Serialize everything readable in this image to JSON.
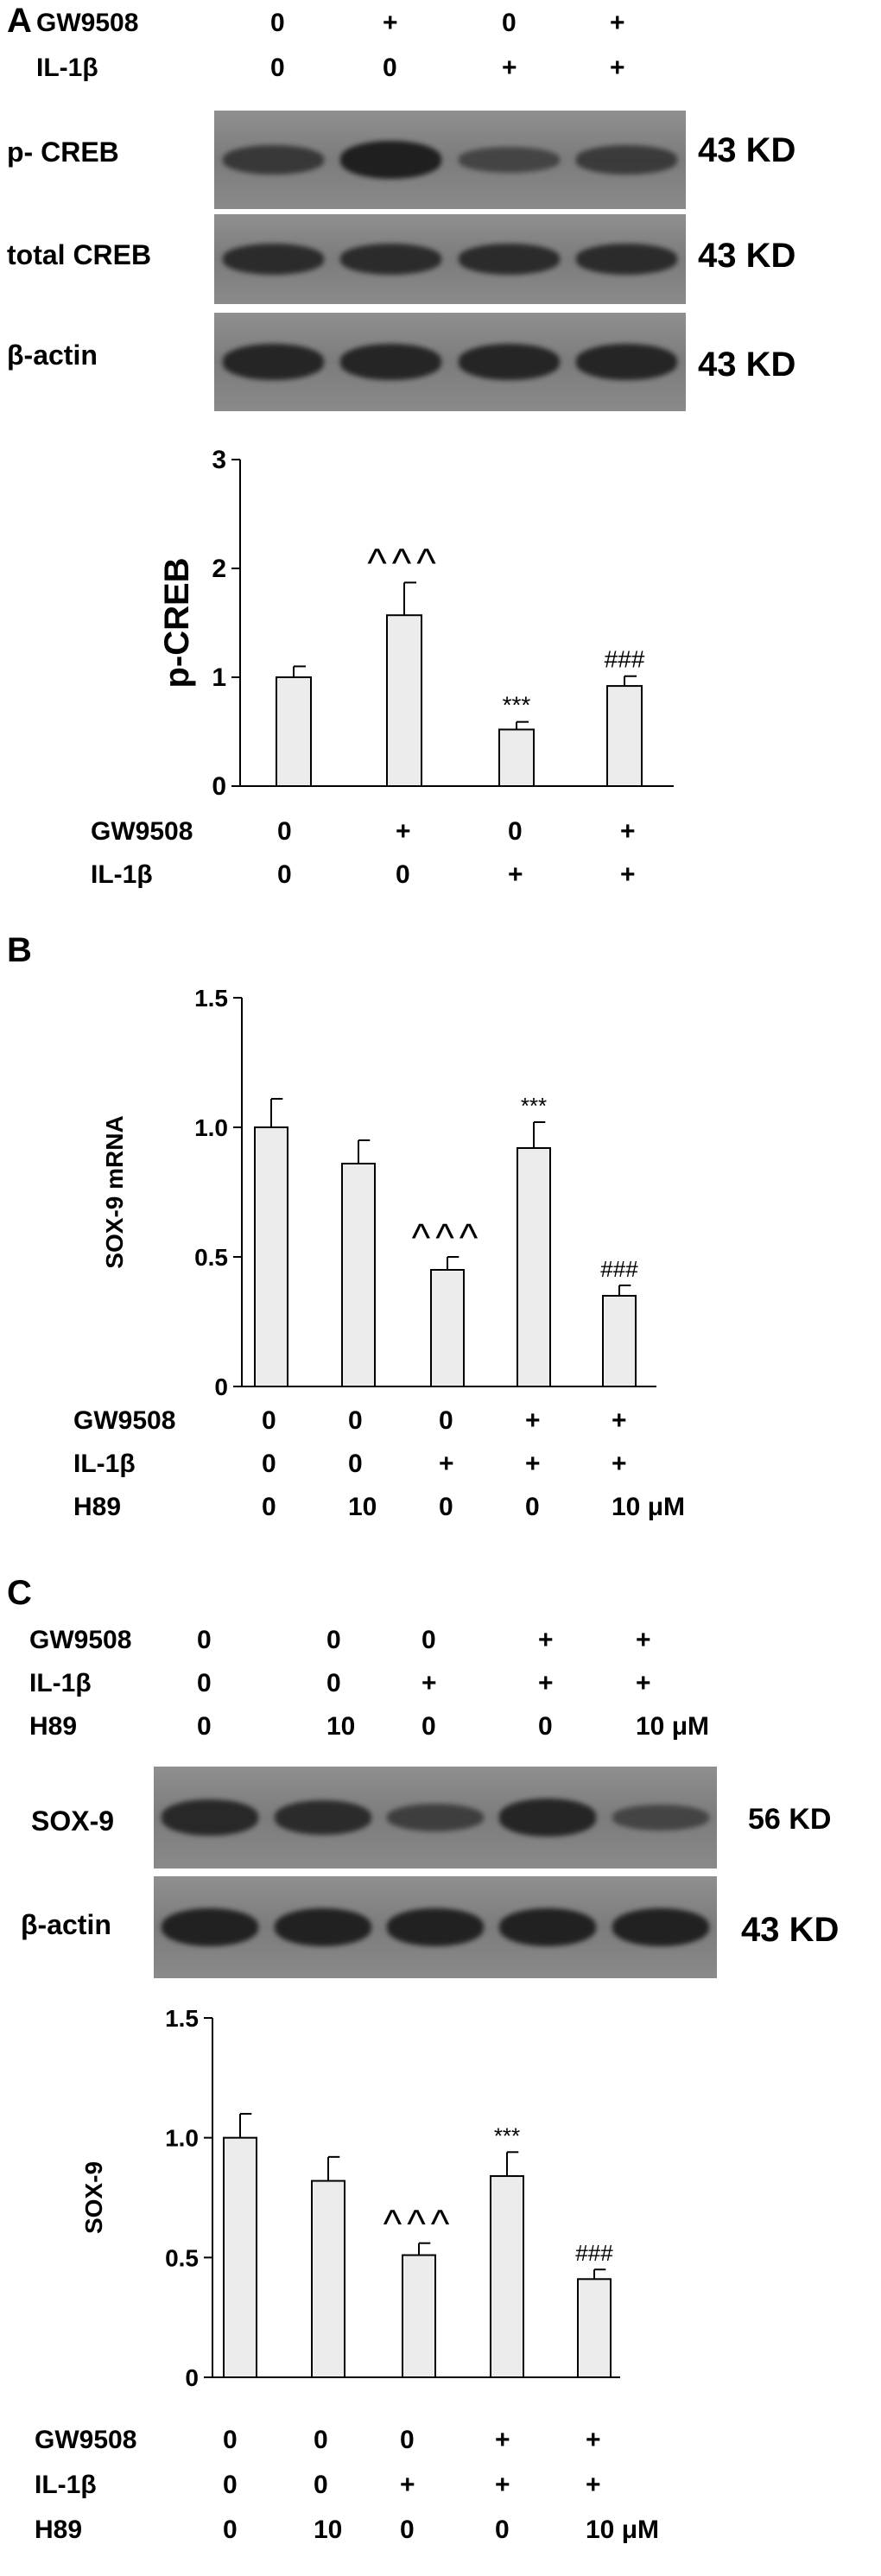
{
  "panel_a": {
    "letter": "A",
    "header_conditions": [
      {
        "label": "GW9508",
        "values": [
          "0",
          "+",
          "0",
          "+"
        ]
      },
      {
        "label": "IL-1β",
        "values": [
          "0",
          "0",
          "+",
          "+"
        ]
      }
    ],
    "blots": [
      {
        "label": "p- CREB",
        "kd": "43 KD",
        "bands": [
          0.55,
          0.95,
          0.35,
          0.5
        ]
      },
      {
        "label": "total CREB",
        "kd": "43 KD",
        "bands": [
          0.75,
          0.75,
          0.75,
          0.75
        ]
      },
      {
        "label": "β-actin",
        "kd": "43 KD",
        "bands": [
          0.85,
          0.85,
          0.85,
          0.85
        ]
      }
    ],
    "footer_conditions": [
      {
        "label": "GW9508",
        "values": [
          "0",
          "+",
          "0",
          "+"
        ]
      },
      {
        "label": "IL-1β",
        "values": [
          "0",
          "0",
          "+",
          "+"
        ]
      }
    ]
  },
  "panel_b": {
    "letter": "B",
    "conditions": [
      {
        "label": "GW9508",
        "values": [
          "0",
          "0",
          "0",
          "+",
          "+"
        ]
      },
      {
        "label": "IL-1β",
        "values": [
          "0",
          "0",
          "+",
          "+",
          "+"
        ]
      },
      {
        "label": "H89",
        "values": [
          "0",
          "10",
          "0",
          "0",
          "10 μM"
        ]
      }
    ]
  },
  "panel_c": {
    "letter": "C",
    "header_conditions": [
      {
        "label": "GW9508",
        "values": [
          "0",
          "0",
          "0",
          "+",
          "+"
        ]
      },
      {
        "label": "IL-1β",
        "values": [
          "0",
          "0",
          "+",
          "+",
          "+"
        ]
      },
      {
        "label": "H89",
        "values": [
          "0",
          "10",
          "0",
          "0",
          "10 μM"
        ]
      }
    ],
    "blots": [
      {
        "label": "SOX-9",
        "kd": "56 KD",
        "bands": [
          0.8,
          0.75,
          0.45,
          0.85,
          0.35
        ]
      },
      {
        "label": "β-actin",
        "kd": "43 KD",
        "bands": [
          0.9,
          0.9,
          0.9,
          0.9,
          0.9
        ]
      }
    ],
    "footer_conditions": [
      {
        "label": "GW9508",
        "values": [
          "0",
          "0",
          "0",
          "+",
          "+"
        ]
      },
      {
        "label": "IL-1β",
        "values": [
          "0",
          "0",
          "+",
          "+",
          "+"
        ]
      },
      {
        "label": "H89",
        "values": [
          "0",
          "10",
          "0",
          "0",
          "10 μM"
        ]
      }
    ]
  },
  "chart_data": [
    {
      "type": "bar",
      "ylabel": "p-CREB",
      "ylim": [
        0,
        3
      ],
      "yticks": [
        "0",
        "1",
        "2",
        "3"
      ],
      "values": [
        1.0,
        1.57,
        0.52,
        0.92
      ],
      "errors": [
        0.1,
        0.3,
        0.07,
        0.09
      ],
      "annotations": [
        "",
        "^^^",
        "***",
        "###"
      ]
    },
    {
      "type": "bar",
      "ylabel": "SOX-9 mRNA",
      "ylim": [
        0,
        1.5
      ],
      "yticks": [
        "0",
        "0.5",
        "1.0",
        "1.5"
      ],
      "values": [
        1.0,
        0.86,
        0.45,
        0.92,
        0.35
      ],
      "errors": [
        0.11,
        0.09,
        0.05,
        0.1,
        0.04
      ],
      "annotations": [
        "",
        "",
        "^^^",
        "***",
        "###"
      ]
    },
    {
      "type": "bar",
      "ylabel": "SOX-9",
      "ylim": [
        0,
        1.5
      ],
      "yticks": [
        "0",
        "0.5",
        "1.0",
        "1.5"
      ],
      "values": [
        1.0,
        0.82,
        0.51,
        0.84,
        0.41
      ],
      "errors": [
        0.1,
        0.1,
        0.05,
        0.1,
        0.04
      ],
      "annotations": [
        "",
        "",
        "^^^",
        "***",
        "###"
      ]
    }
  ]
}
